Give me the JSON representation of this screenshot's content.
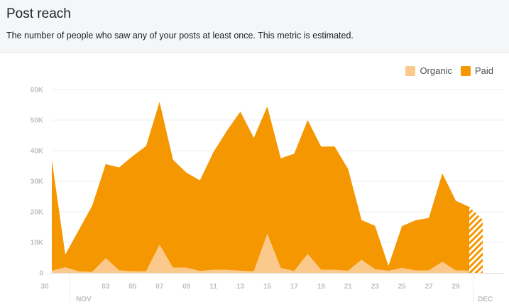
{
  "header": {
    "title": "Post reach",
    "subtitle": "The number of people who saw any of your posts at least once. This metric is estimated."
  },
  "legend": {
    "organic_label": "Organic",
    "paid_label": "Paid"
  },
  "colors": {
    "paid": "#f59700",
    "organic": "#fcc98d",
    "header_bg": "#f5f6f7",
    "grid": "#ebedf0",
    "tick": "#bcc0c4"
  },
  "chart_data": {
    "type": "area",
    "stacked": true,
    "x": [
      "30",
      "31",
      "01",
      "02",
      "03",
      "04",
      "05",
      "06",
      "07",
      "08",
      "09",
      "10",
      "11",
      "12",
      "13",
      "14",
      "15",
      "16",
      "17",
      "18",
      "19",
      "20",
      "21",
      "22",
      "23",
      "24",
      "25",
      "26",
      "27",
      "28",
      "29",
      "30",
      "01"
    ],
    "x_tick_labels": [
      "30",
      "03",
      "05",
      "07",
      "09",
      "11",
      "13",
      "15",
      "17",
      "19",
      "21",
      "23",
      "25",
      "27",
      "29"
    ],
    "x_tick_indices": [
      0,
      4,
      6,
      8,
      10,
      12,
      14,
      16,
      18,
      20,
      22,
      24,
      26,
      28,
      30
    ],
    "month_labels": [
      {
        "label": "NOV",
        "index": 2
      },
      {
        "label": "DEC",
        "index": 32
      }
    ],
    "series": [
      {
        "name": "Organic",
        "values": [
          700,
          1800,
          500,
          300,
          4800,
          800,
          500,
          500,
          9200,
          1700,
          1700,
          600,
          1000,
          1000,
          700,
          500,
          12800,
          1600,
          600,
          6200,
          1000,
          1000,
          700,
          4300,
          1200,
          700,
          1600,
          800,
          800,
          3600,
          800,
          700,
          1200
        ]
      },
      {
        "name": "Paid",
        "values": [
          36300,
          4200,
          13500,
          21700,
          30800,
          33700,
          37700,
          41000,
          46800,
          35300,
          31100,
          29700,
          38500,
          45500,
          52100,
          43700,
          41700,
          35900,
          38400,
          43800,
          40300,
          40400,
          33300,
          13000,
          14200,
          1600,
          13700,
          16400,
          17200,
          29000,
          22800,
          20900,
          16200
        ]
      }
    ],
    "ylim": [
      0,
      60000
    ],
    "y_ticks": [
      0,
      10000,
      20000,
      30000,
      40000,
      50000,
      60000
    ],
    "y_tick_labels": [
      "0",
      "10K",
      "20K",
      "30K",
      "40K",
      "50K",
      "60K"
    ],
    "partial_last_segment": true,
    "grid": true,
    "legend_position": "top-right"
  }
}
